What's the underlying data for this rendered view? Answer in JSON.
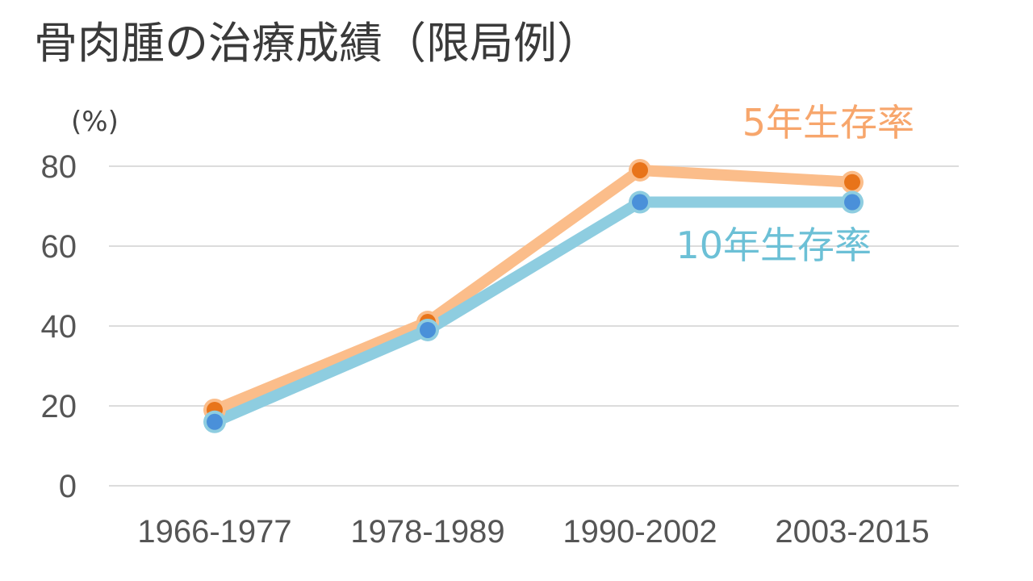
{
  "title": "骨肉腫の治療成績（限局例）",
  "y_unit": "(%)",
  "colors": {
    "five_year_line": "#fbbd8a",
    "five_year_point": "#e8741a",
    "five_year_label": "#f7a66c",
    "ten_year_line": "#8ecde0",
    "ten_year_point": "#4a90d9",
    "ten_year_label": "#6cc0d6",
    "grid": "#dcdcdc"
  },
  "chart_data": {
    "type": "line",
    "title": "骨肉腫の治療成績（限局例）",
    "ylabel": "(%)",
    "xlabel": "",
    "categories": [
      "1966-1977",
      "1978-1989",
      "1990-2002",
      "2003-2015"
    ],
    "yticks": [
      0,
      20,
      40,
      60,
      80
    ],
    "ylim": [
      0,
      80
    ],
    "grid": true,
    "series": [
      {
        "name": "5年生存率",
        "values": [
          19,
          41,
          79,
          76
        ]
      },
      {
        "name": "10年生存率",
        "values": [
          16,
          39,
          71,
          71
        ]
      }
    ]
  }
}
